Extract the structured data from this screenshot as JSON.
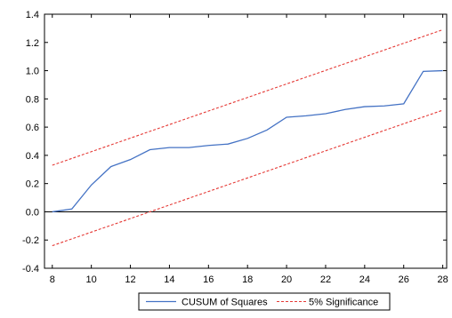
{
  "chart_data": {
    "type": "line",
    "x": [
      8,
      9,
      10,
      11,
      12,
      13,
      14,
      15,
      16,
      17,
      18,
      19,
      20,
      21,
      22,
      23,
      24,
      25,
      26,
      27,
      28
    ],
    "xlim": [
      7.6,
      28.2
    ],
    "ylim": [
      -0.4,
      1.4
    ],
    "xticks": [
      8,
      10,
      12,
      14,
      16,
      18,
      20,
      22,
      24,
      26,
      28
    ],
    "yticks": [
      -0.4,
      -0.2,
      0.0,
      0.2,
      0.4,
      0.6,
      0.8,
      1.0,
      1.2,
      1.4
    ],
    "ytick_labels": [
      "-0.4",
      "-0.2",
      "0.0",
      "0.2",
      "0.4",
      "0.6",
      "0.8",
      "1.0",
      "1.2",
      "1.4"
    ],
    "grid": false,
    "zero_line": true,
    "legend_position": "bottom",
    "series": [
      {
        "name": "CUSUM of Squares",
        "color": "#4472c4",
        "style": "solid",
        "values": [
          0.0,
          0.02,
          0.19,
          0.32,
          0.37,
          0.44,
          0.455,
          0.455,
          0.47,
          0.48,
          0.52,
          0.58,
          0.67,
          0.68,
          0.695,
          0.725,
          0.745,
          0.75,
          0.765,
          0.995,
          1.0
        ]
      },
      {
        "name": "5% Significance",
        "color": "#e53935",
        "style": "dashed",
        "values": [
          0.33,
          0.378,
          0.426,
          0.474,
          0.522,
          0.57,
          0.618,
          0.666,
          0.714,
          0.762,
          0.81,
          0.858,
          0.906,
          0.954,
          1.002,
          1.05,
          1.098,
          1.146,
          1.194,
          1.242,
          1.29
        ]
      },
      {
        "name": "5% Significance lower",
        "color": "#e53935",
        "style": "dashed",
        "values": [
          -0.24,
          -0.192,
          -0.144,
          -0.096,
          -0.048,
          0.0,
          0.048,
          0.096,
          0.144,
          0.192,
          0.24,
          0.288,
          0.336,
          0.384,
          0.432,
          0.48,
          0.528,
          0.576,
          0.624,
          0.672,
          0.72
        ]
      }
    ],
    "legend": [
      {
        "label": "CUSUM of Squares",
        "color": "#4472c4",
        "style": "solid"
      },
      {
        "label": "5% Significance",
        "color": "#e53935",
        "style": "dashed"
      }
    ]
  }
}
